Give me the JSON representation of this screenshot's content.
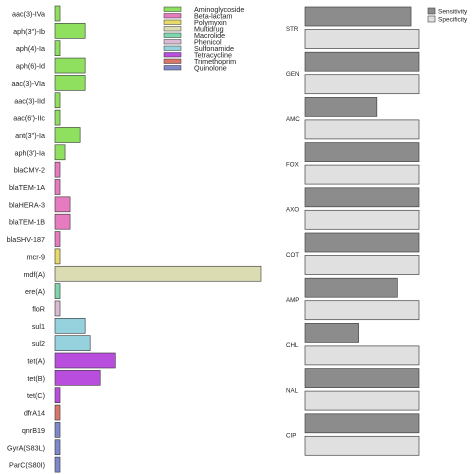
{
  "chart_data": [
    {
      "type": "bar",
      "orientation": "horizontal",
      "categories": [
        "aac(3)-IVa",
        "aph(3'')-Ib",
        "aph(4)-Ia",
        "aph(6)-Id",
        "aac(3)-VIa",
        "aac(3)-IId",
        "aac(6')-IIc",
        "ant(3'')-Ia",
        "aph(3')-Ia",
        "blaCMY-2",
        "blaTEM-1A",
        "blaHERA-3",
        "blaTEM-1B",
        "blaSHV-187",
        "mcr-9",
        "mdf(A)",
        "ere(A)",
        "floR",
        "sul1",
        "sul2",
        "tet(A)",
        "tet(B)",
        "tet(C)",
        "dfrA14",
        "qnrB19",
        "GyrA(S83L)",
        "ParC(S80I)"
      ],
      "values": [
        1,
        6,
        1,
        6,
        6,
        1,
        1,
        5,
        2,
        1,
        1,
        3,
        3,
        1,
        1,
        41,
        1,
        1,
        6,
        7,
        12,
        9,
        1,
        1,
        1,
        1,
        1
      ],
      "groups": [
        "Aminoglycoside",
        "Aminoglycoside",
        "Aminoglycoside",
        "Aminoglycoside",
        "Aminoglycoside",
        "Aminoglycoside",
        "Aminoglycoside",
        "Aminoglycoside",
        "Aminoglycoside",
        "Beta-lactam",
        "Beta-lactam",
        "Beta-lactam",
        "Beta-lactam",
        "Beta-lactam",
        "Polymyxin",
        "Multidrug",
        "Macrolide",
        "Phenicol",
        "Sulfonamide",
        "Sulfonamide",
        "Tetracycline",
        "Tetracycline",
        "Tetracycline",
        "Trimethoprim",
        "Quinolone",
        "Quinolone",
        "Quinolone"
      ],
      "xlim": [
        0,
        41
      ],
      "legend": {
        "placement": "top",
        "entries": [
          {
            "name": "Aminoglycoside",
            "color": "#8fe05f"
          },
          {
            "name": "Beta-lactam",
            "color": "#e67cbf"
          },
          {
            "name": "Polymyxin",
            "color": "#e7da6a"
          },
          {
            "name": "Multidrug",
            "color": "#dcdcb2"
          },
          {
            "name": "Macrolide",
            "color": "#7fd6ac"
          },
          {
            "name": "Phenicol",
            "color": "#d9bcd3"
          },
          {
            "name": "Sulfonamide",
            "color": "#96d1de"
          },
          {
            "name": "Tetracycline",
            "color": "#b94ede"
          },
          {
            "name": "Trimethoprim",
            "color": "#d7766a"
          },
          {
            "name": "Quinolone",
            "color": "#7f88c9"
          }
        ]
      }
    },
    {
      "type": "bar",
      "orientation": "horizontal",
      "categories": [
        "STR",
        "GEN",
        "AMC",
        "FOX",
        "AXO",
        "COT",
        "AMP",
        "CHL",
        "NAL",
        "CIP"
      ],
      "series": [
        {
          "name": "Sensitivity",
          "color": "#8c8c8c",
          "values": [
            0.93,
            1.0,
            0.63,
            1.0,
            1.0,
            1.0,
            0.81,
            0.47,
            1.0,
            1.0
          ]
        },
        {
          "name": "Specificity",
          "color": "#e0e0e0",
          "values": [
            1.0,
            1.0,
            1.0,
            1.0,
            1.0,
            1.0,
            1.0,
            1.0,
            1.0,
            1.0
          ]
        }
      ],
      "xlim": [
        0,
        1
      ],
      "legend": {
        "placement": "top-right"
      }
    }
  ]
}
